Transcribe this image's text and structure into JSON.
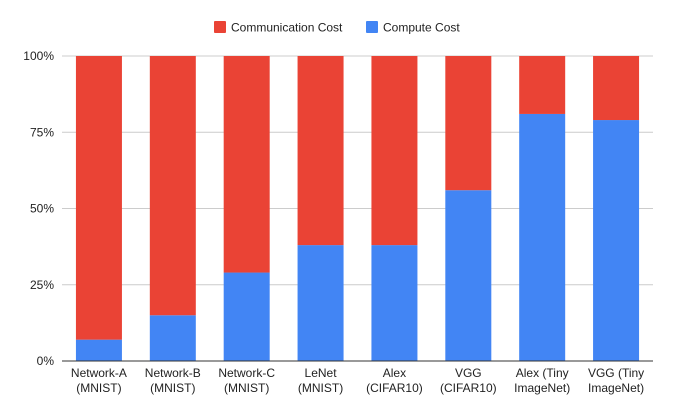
{
  "chart_data": {
    "type": "bar",
    "stacked": "percent",
    "title": "",
    "xlabel": "",
    "ylabel": "",
    "ylim": [
      0,
      100
    ],
    "y_ticks": [
      {
        "value": 0,
        "label": "0%"
      },
      {
        "value": 25,
        "label": "25%"
      },
      {
        "value": 50,
        "label": "50%"
      },
      {
        "value": 75,
        "label": "75%"
      },
      {
        "value": 100,
        "label": "100%"
      }
    ],
    "grid": true,
    "legend_position": "top-center",
    "categories": [
      [
        "Network-A",
        "(MNIST)"
      ],
      [
        "Network-B",
        "(MNIST)"
      ],
      [
        "Network-C",
        "(MNIST)"
      ],
      [
        "LeNet",
        "(MNIST)"
      ],
      [
        "Alex",
        "(CIFAR10)"
      ],
      [
        "VGG",
        "(CIFAR10)"
      ],
      [
        "Alex (Tiny",
        "ImageNet)"
      ],
      [
        "VGG (Tiny",
        "ImageNet)"
      ]
    ],
    "series": [
      {
        "name": "Compute Cost",
        "color": "#4285F4",
        "values": [
          7,
          15,
          29,
          38,
          38,
          56,
          81,
          79
        ]
      },
      {
        "name": "Communication Cost",
        "color": "#EA4335",
        "values": [
          93,
          85,
          71,
          62,
          62,
          44,
          19,
          21
        ]
      }
    ],
    "legend": [
      {
        "name": "Communication Cost",
        "color": "#EA4335"
      },
      {
        "name": "Compute Cost",
        "color": "#4285F4"
      }
    ]
  }
}
